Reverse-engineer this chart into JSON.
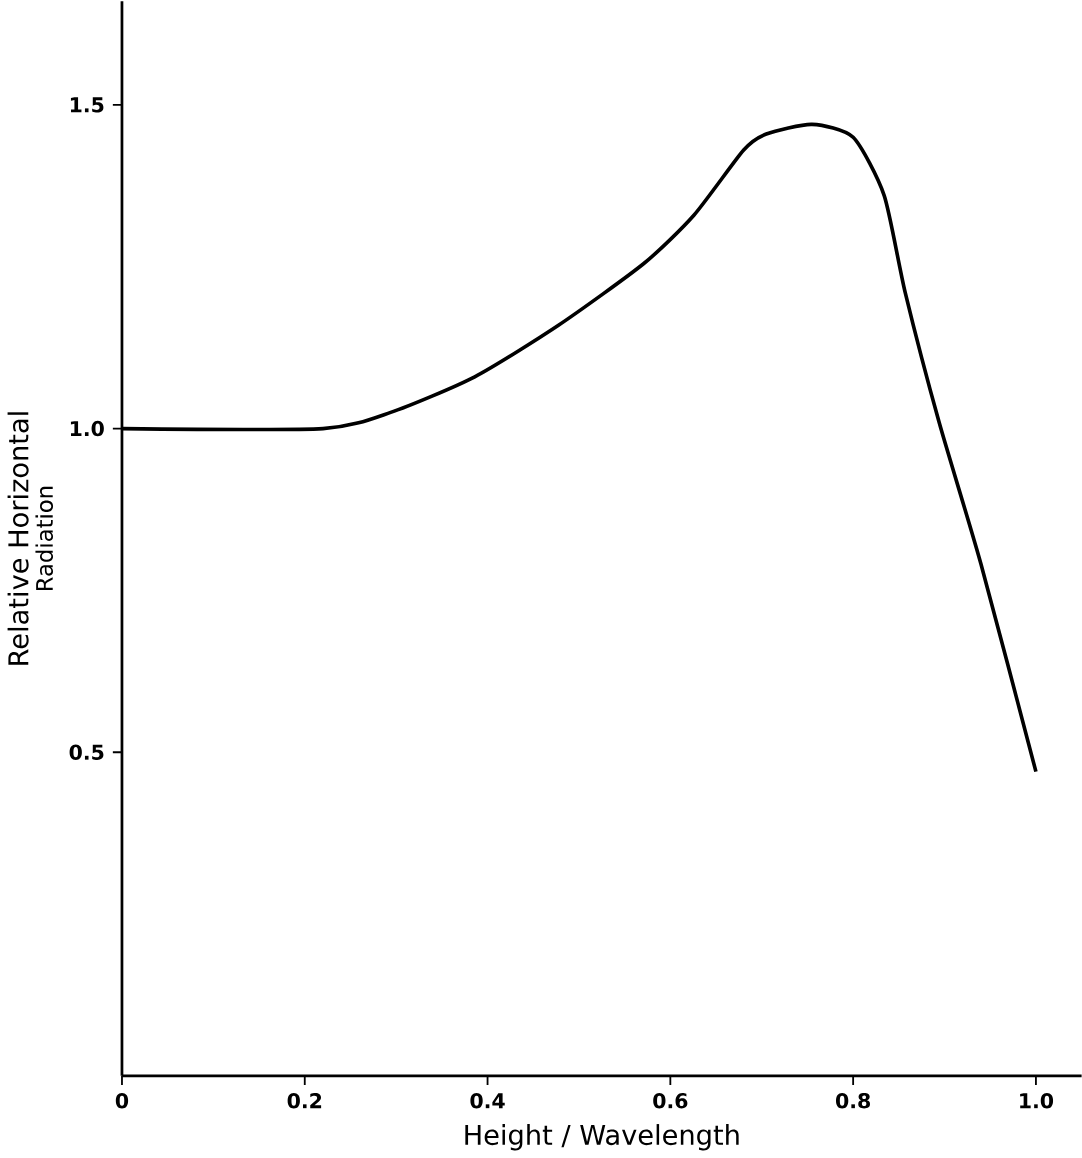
{
  "chart_data": {
    "type": "line",
    "xlabel": "Height / Wavelength",
    "ylabel": "Relative Horizontal",
    "subtitle": "Radiation",
    "x": [
      0,
      0.22,
      0.294,
      0.386,
      0.478,
      0.571,
      0.626,
      0.68,
      0.705,
      0.755,
      0.8,
      0.834,
      0.857,
      0.894,
      0.94,
      1.0
    ],
    "series": [
      {
        "color": "#000000",
        "values": [
          1.0,
          1.0,
          1.025,
          1.08,
          1.16,
          1.255,
          1.33,
          1.43,
          1.455,
          1.47,
          1.45,
          1.36,
          1.21,
          1.01,
          0.79,
          0.47
        ]
      }
    ],
    "xlim": [
      0,
      1.05
    ],
    "ylim": [
      0,
      1.66
    ],
    "xticks": [
      {
        "value": 0,
        "label": "0"
      },
      {
        "value": 0.2,
        "label": "0.2"
      },
      {
        "value": 0.4,
        "label": "0.4"
      },
      {
        "value": 0.6,
        "label": "0.6"
      },
      {
        "value": 0.8,
        "label": "0.8"
      },
      {
        "value": 1.0,
        "label": "1.0"
      }
    ],
    "yticks": [
      {
        "value": 0.5,
        "label": "0.5"
      },
      {
        "value": 1.0,
        "label": "1.0"
      },
      {
        "value": 1.5,
        "label": "1.5"
      }
    ],
    "grid": false,
    "legend": false,
    "marker": "none",
    "line_style": "solid"
  }
}
